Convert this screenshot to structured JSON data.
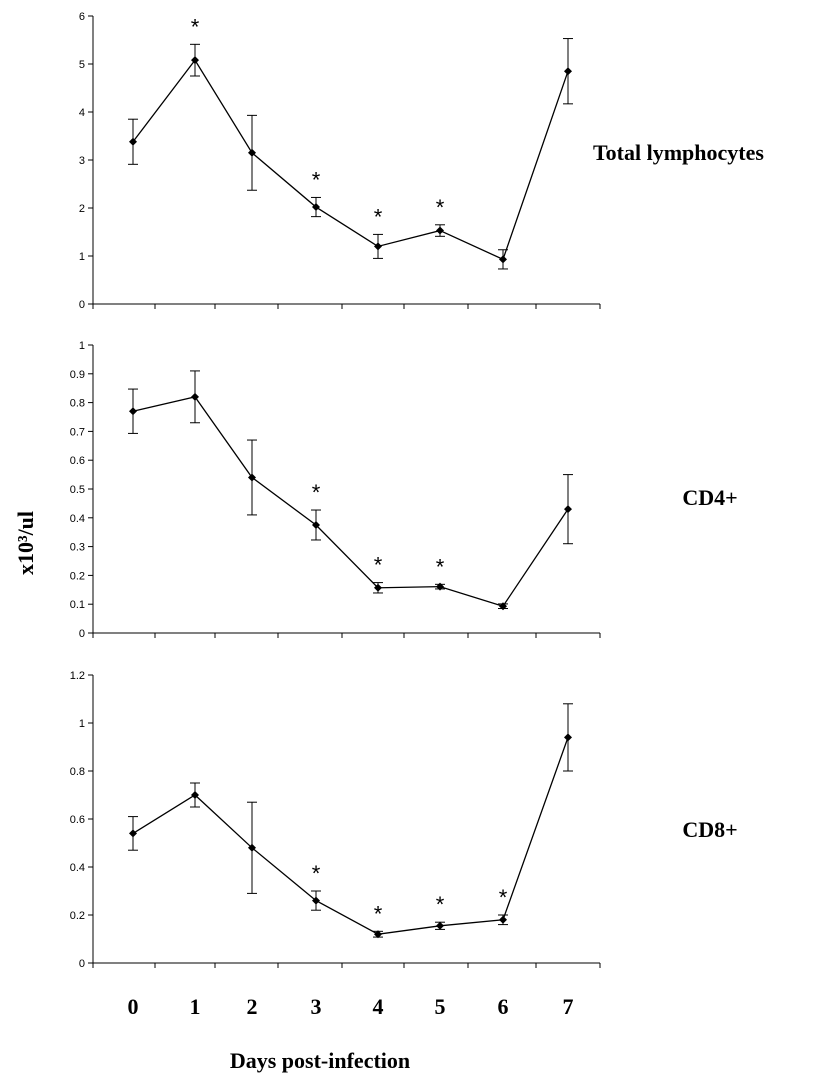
{
  "chart_data": [
    {
      "type": "line",
      "panel_label": "Total lymphocytes",
      "ylim": [
        0,
        6
      ],
      "yticks": [
        "0",
        "1",
        "2",
        "3",
        "4",
        "5",
        "6"
      ],
      "categories": [
        "0",
        "1",
        "2",
        "3",
        "4",
        "5",
        "6",
        "7"
      ],
      "values": [
        3.38,
        5.08,
        3.15,
        2.02,
        1.2,
        1.53,
        0.93,
        4.85
      ],
      "errors": [
        0.47,
        0.33,
        0.78,
        0.2,
        0.25,
        0.12,
        0.2,
        0.68
      ],
      "significant": [
        "",
        "*",
        "",
        "*",
        "*",
        "*",
        "",
        ""
      ]
    },
    {
      "type": "line",
      "panel_label": "CD4+",
      "ylim": [
        0,
        1
      ],
      "yticks": [
        "0",
        "0.1",
        "0.2",
        "0.3",
        "0.4",
        "0.5",
        "0.6",
        "0.7",
        "0.8",
        "0.9",
        "1"
      ],
      "categories": [
        "0",
        "1",
        "2",
        "3",
        "4",
        "5",
        "6",
        "7"
      ],
      "values": [
        0.77,
        0.82,
        0.54,
        0.375,
        0.157,
        0.161,
        0.093,
        0.43
      ],
      "errors": [
        0.077,
        0.09,
        0.13,
        0.052,
        0.018,
        0.008,
        0.008,
        0.12
      ],
      "significant": [
        "",
        "",
        "",
        "*",
        "*",
        "*",
        "",
        ""
      ]
    },
    {
      "type": "line",
      "panel_label": "CD8+",
      "ylim": [
        0,
        1.2
      ],
      "yticks": [
        "0",
        "0.2",
        "0.4",
        "0.6",
        "0.8",
        "1",
        "1.2"
      ],
      "categories": [
        "0",
        "1",
        "2",
        "3",
        "4",
        "5",
        "6",
        "7"
      ],
      "values": [
        0.54,
        0.7,
        0.48,
        0.26,
        0.12,
        0.155,
        0.18,
        0.94
      ],
      "errors": [
        0.07,
        0.05,
        0.19,
        0.04,
        0.012,
        0.015,
        0.02,
        0.14
      ],
      "significant": [
        "",
        "",
        "",
        "*",
        "*",
        "*",
        "*",
        ""
      ]
    }
  ],
  "shared": {
    "ylabel": "x10³/ul",
    "xlabel": "Days post-infection",
    "x_categories": [
      "0",
      "1",
      "2",
      "3",
      "4",
      "5",
      "6",
      "7"
    ]
  }
}
